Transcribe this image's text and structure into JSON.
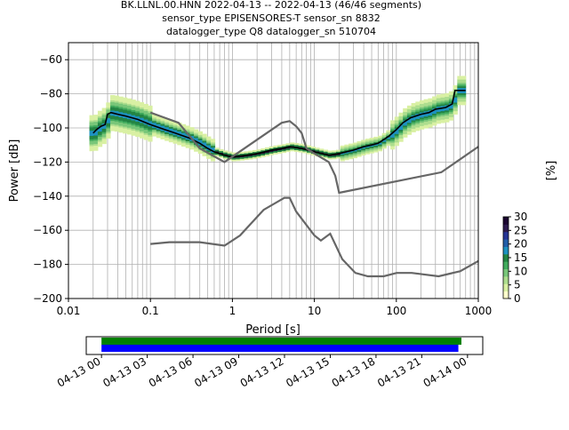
{
  "chart_data": [
    {
      "type": "heatmap",
      "title_lines": [
        "BK.LLNL.00.HNN   2022-04-13 -- 2022-04-13  (46/46 segments)",
        "sensor_type EPISENSORES-T sensor_sn 8832",
        "datalogger_type Q8 datalogger_sn 510704"
      ],
      "xlabel": "Period [s]",
      "ylabel": "Power [dB]",
      "xscale": "log",
      "xlim": [
        0.01,
        1000
      ],
      "ylim": [
        -200,
        -50
      ],
      "xticks": [
        {
          "v": 0.01,
          "label": "0.01"
        },
        {
          "v": 0.1,
          "label": "0.1"
        },
        {
          "v": 1,
          "label": "1"
        },
        {
          "v": 10,
          "label": "10"
        },
        {
          "v": 100,
          "label": "100"
        },
        {
          "v": 1000,
          "label": "1000"
        }
      ],
      "yticks": [
        {
          "v": -60,
          "label": "−60"
        },
        {
          "v": -80,
          "label": "−80"
        },
        {
          "v": -100,
          "label": "−100"
        },
        {
          "v": -120,
          "label": "−120"
        },
        {
          "v": -140,
          "label": "−140"
        },
        {
          "v": -160,
          "label": "−160"
        },
        {
          "v": -180,
          "label": "−180"
        },
        {
          "v": -200,
          "label": "−200"
        }
      ],
      "grid": true,
      "colorbar": {
        "label": "[%]",
        "range": [
          0,
          30
        ],
        "ticks": [
          {
            "v": 0,
            "label": "0"
          },
          {
            "v": 5,
            "label": "5"
          },
          {
            "v": 10,
            "label": "10"
          },
          {
            "v": 15,
            "label": "15"
          },
          {
            "v": 20,
            "label": "20"
          },
          {
            "v": 25,
            "label": "25"
          },
          {
            "v": 30,
            "label": "30"
          }
        ],
        "colors": [
          "#ffffcc",
          "#d9f0a3",
          "#addd8e",
          "#78c679",
          "#41ab5d",
          "#238443",
          "#1d91c0",
          "#225ea8",
          "#253494",
          "#2c1a4e",
          "#1a0530"
        ]
      },
      "series": [
        {
          "role": "mode",
          "color": "#000000",
          "points": [
            [
              0.02,
              -103
            ],
            [
              0.022,
              -101
            ],
            [
              0.025,
              -99
            ],
            [
              0.028,
              -98
            ],
            [
              0.03,
              -92
            ],
            [
              0.033,
              -91
            ],
            [
              0.04,
              -92
            ],
            [
              0.05,
              -93
            ],
            [
              0.07,
              -95
            ],
            [
              0.1,
              -98
            ],
            [
              0.15,
              -101
            ],
            [
              0.2,
              -103
            ],
            [
              0.3,
              -106
            ],
            [
              0.4,
              -109
            ],
            [
              0.5,
              -112
            ],
            [
              0.6,
              -114
            ],
            [
              0.8,
              -116
            ],
            [
              1,
              -117
            ],
            [
              1.5,
              -116
            ],
            [
              2,
              -115
            ],
            [
              3,
              -113
            ],
            [
              4,
              -112
            ],
            [
              5,
              -111
            ],
            [
              7,
              -112
            ],
            [
              10,
              -114
            ],
            [
              15,
              -116
            ],
            [
              20,
              -115
            ],
            [
              30,
              -113
            ],
            [
              40,
              -111
            ],
            [
              50,
              -110
            ],
            [
              60,
              -109
            ],
            [
              80,
              -105
            ],
            [
              100,
              -101
            ],
            [
              120,
              -97
            ],
            [
              150,
              -94
            ],
            [
              200,
              -92
            ],
            [
              250,
              -91
            ],
            [
              300,
              -89
            ],
            [
              400,
              -88
            ],
            [
              480,
              -86
            ],
            [
              520,
              -78
            ],
            [
              600,
              -78
            ],
            [
              700,
              -78
            ]
          ]
        },
        {
          "role": "NHNM",
          "color": "#666666",
          "points": [
            [
              0.1,
              -91
            ],
            [
              0.17,
              -95
            ],
            [
              0.22,
              -97
            ],
            [
              0.4,
              -112
            ],
            [
              0.8,
              -120
            ],
            [
              4,
              -97
            ],
            [
              5,
              -96
            ],
            [
              6,
              -99
            ],
            [
              7,
              -103
            ],
            [
              8,
              -112
            ],
            [
              10,
              -115
            ],
            [
              15,
              -120
            ],
            [
              18,
              -128
            ],
            [
              20,
              -138
            ],
            [
              354,
              -126
            ],
            [
              1000,
              -111
            ]
          ]
        },
        {
          "role": "NLNM",
          "color": "#666666",
          "points": [
            [
              0.1,
              -168
            ],
            [
              0.17,
              -167
            ],
            [
              0.4,
              -167
            ],
            [
              0.8,
              -169
            ],
            [
              1.24,
              -163
            ],
            [
              2.4,
              -148
            ],
            [
              4.3,
              -141
            ],
            [
              5,
              -141
            ],
            [
              6,
              -149
            ],
            [
              10,
              -163
            ],
            [
              12,
              -166
            ],
            [
              15.6,
              -162
            ],
            [
              21.9,
              -177
            ],
            [
              31.6,
              -185
            ],
            [
              45,
              -187
            ],
            [
              70,
              -187
            ],
            [
              101,
              -185
            ],
            [
              154,
              -185
            ],
            [
              328,
              -187
            ],
            [
              600,
              -184
            ],
            [
              1000,
              -178
            ]
          ]
        }
      ]
    },
    {
      "type": "timeline",
      "xlim": [
        "04-13 00",
        "04-14 00"
      ],
      "xticks": [
        "04-13 00",
        "04-13 03",
        "04-13 06",
        "04-13 09",
        "04-13 12",
        "04-13 15",
        "04-13 18",
        "04-13 21",
        "04-14 00"
      ],
      "bars": [
        {
          "role": "data",
          "color": "#008000",
          "start_h": 0,
          "end_h": 23.6
        },
        {
          "role": "segments",
          "color": "#0000ff",
          "start_h": 0,
          "end_h": 23.4
        }
      ]
    }
  ]
}
